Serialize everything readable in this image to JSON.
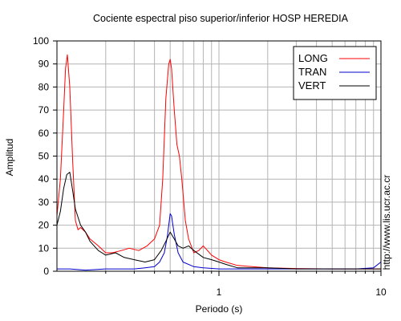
{
  "chart_data": {
    "type": "line",
    "title": "Cociente espectral piso superior/inferior  HOSP HEREDIA",
    "xlabel": "Periodo (s)",
    "ylabel": "Amplitud",
    "side_text": "http://www.lis.ucr.ac.cr",
    "x_scale": "log",
    "xlim": [
      0.1,
      10
    ],
    "ylim": [
      0,
      100
    ],
    "x_tick_labels": [
      "1",
      "10"
    ],
    "y_ticks": [
      0,
      10,
      20,
      30,
      40,
      50,
      60,
      70,
      80,
      90,
      100
    ],
    "grid": true,
    "legend_position": "top-right",
    "series": [
      {
        "name": "LONG",
        "color": "#ff0000",
        "points": [
          [
            0.1,
            24
          ],
          [
            0.105,
            40
          ],
          [
            0.11,
            70
          ],
          [
            0.113,
            88
          ],
          [
            0.116,
            94
          ],
          [
            0.12,
            80
          ],
          [
            0.125,
            48
          ],
          [
            0.13,
            22
          ],
          [
            0.135,
            18
          ],
          [
            0.14,
            19
          ],
          [
            0.15,
            17
          ],
          [
            0.16,
            14
          ],
          [
            0.18,
            11
          ],
          [
            0.2,
            8
          ],
          [
            0.22,
            8
          ],
          [
            0.25,
            9
          ],
          [
            0.28,
            10
          ],
          [
            0.32,
            9
          ],
          [
            0.36,
            11
          ],
          [
            0.4,
            14
          ],
          [
            0.43,
            20
          ],
          [
            0.45,
            40
          ],
          [
            0.47,
            75
          ],
          [
            0.49,
            90
          ],
          [
            0.5,
            92
          ],
          [
            0.51,
            88
          ],
          [
            0.53,
            70
          ],
          [
            0.55,
            55
          ],
          [
            0.57,
            50
          ],
          [
            0.59,
            40
          ],
          [
            0.62,
            22
          ],
          [
            0.65,
            14
          ],
          [
            0.7,
            8
          ],
          [
            0.75,
            9
          ],
          [
            0.8,
            11
          ],
          [
            0.85,
            9
          ],
          [
            0.9,
            7
          ],
          [
            1.0,
            5
          ],
          [
            1.1,
            4
          ],
          [
            1.3,
            2.5
          ],
          [
            1.6,
            2
          ],
          [
            2.0,
            1.5
          ],
          [
            3.0,
            1.2
          ],
          [
            5.0,
            1
          ],
          [
            7.0,
            1
          ],
          [
            10,
            1
          ]
        ]
      },
      {
        "name": "TRAN",
        "color": "#0000cc",
        "points": [
          [
            0.1,
            1
          ],
          [
            0.12,
            1
          ],
          [
            0.15,
            0.5
          ],
          [
            0.2,
            1
          ],
          [
            0.25,
            1
          ],
          [
            0.3,
            1
          ],
          [
            0.35,
            1.5
          ],
          [
            0.4,
            2
          ],
          [
            0.43,
            4
          ],
          [
            0.46,
            8
          ],
          [
            0.48,
            15
          ],
          [
            0.5,
            25
          ],
          [
            0.51,
            24
          ],
          [
            0.53,
            16
          ],
          [
            0.56,
            8
          ],
          [
            0.6,
            4
          ],
          [
            0.7,
            2
          ],
          [
            0.8,
            1.5
          ],
          [
            1.0,
            1
          ],
          [
            1.5,
            1
          ],
          [
            2.0,
            1
          ],
          [
            3.0,
            1
          ],
          [
            5.0,
            1
          ],
          [
            7.0,
            1
          ],
          [
            9.0,
            1.5
          ],
          [
            10,
            4
          ]
        ]
      },
      {
        "name": "VERT",
        "color": "#000000",
        "points": [
          [
            0.1,
            20
          ],
          [
            0.105,
            26
          ],
          [
            0.11,
            36
          ],
          [
            0.115,
            42
          ],
          [
            0.12,
            43
          ],
          [
            0.125,
            35
          ],
          [
            0.13,
            27
          ],
          [
            0.14,
            20
          ],
          [
            0.15,
            17
          ],
          [
            0.16,
            13
          ],
          [
            0.18,
            9
          ],
          [
            0.2,
            7
          ],
          [
            0.23,
            8
          ],
          [
            0.26,
            6
          ],
          [
            0.3,
            5
          ],
          [
            0.35,
            4
          ],
          [
            0.4,
            5
          ],
          [
            0.44,
            9
          ],
          [
            0.47,
            13
          ],
          [
            0.5,
            17
          ],
          [
            0.53,
            14
          ],
          [
            0.56,
            11
          ],
          [
            0.6,
            10
          ],
          [
            0.65,
            11
          ],
          [
            0.7,
            9
          ],
          [
            0.8,
            6
          ],
          [
            0.9,
            5
          ],
          [
            1.0,
            4
          ],
          [
            1.1,
            3
          ],
          [
            1.3,
            1.5
          ],
          [
            1.6,
            1.5
          ],
          [
            2.0,
            1.5
          ],
          [
            3.0,
            1
          ],
          [
            5.0,
            1
          ],
          [
            7.0,
            1
          ],
          [
            10,
            1
          ]
        ]
      }
    ]
  }
}
